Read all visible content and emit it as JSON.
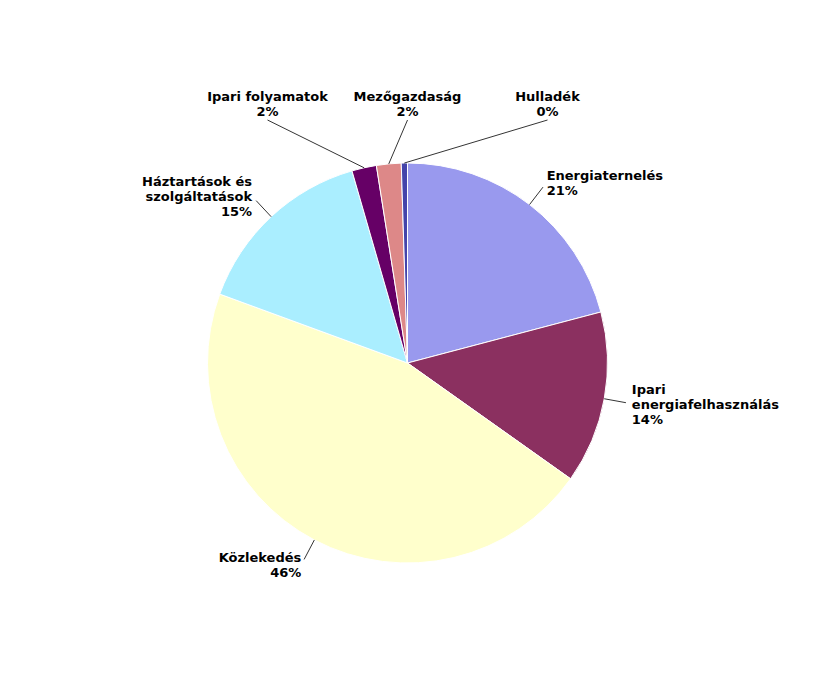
{
  "chart_data": {
    "type": "pie",
    "categories": [
      "Energiaternelés",
      "Ipari\nenergiafelhasználás",
      "Közlekedés",
      "Háztartások és\nszolgáltatások",
      "Ipari folyamatok",
      "Mezőgazdaság",
      "Hulladék"
    ],
    "values": [
      21,
      14,
      46,
      15,
      2,
      2,
      0.5
    ],
    "value_labels": [
      "21%",
      "14%",
      "46%",
      "15%",
      "2%",
      "2%",
      "0%"
    ],
    "colors": [
      "#9999ee",
      "#8b3060",
      "#ffffcc",
      "#aaeeff",
      "#660066",
      "#dd8888",
      "#4444aa"
    ]
  }
}
